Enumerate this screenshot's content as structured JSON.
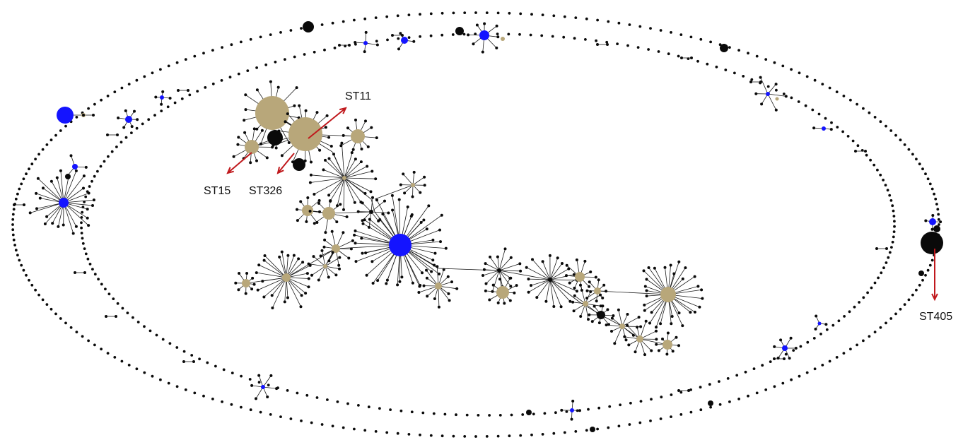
{
  "diagram": {
    "type": "minimum-spanning-tree",
    "labels": [
      {
        "id": "st11",
        "text": "ST11"
      },
      {
        "id": "st15",
        "text": "ST15"
      },
      {
        "id": "st326",
        "text": "ST326"
      },
      {
        "id": "st405",
        "text": "ST405"
      }
    ],
    "colors": {
      "node_black": "#0a0a0a",
      "node_tan": "#b8a77a",
      "node_blue": "#1414ff",
      "edge": "#1a1a1a",
      "arrow": "#c0181c"
    }
  }
}
